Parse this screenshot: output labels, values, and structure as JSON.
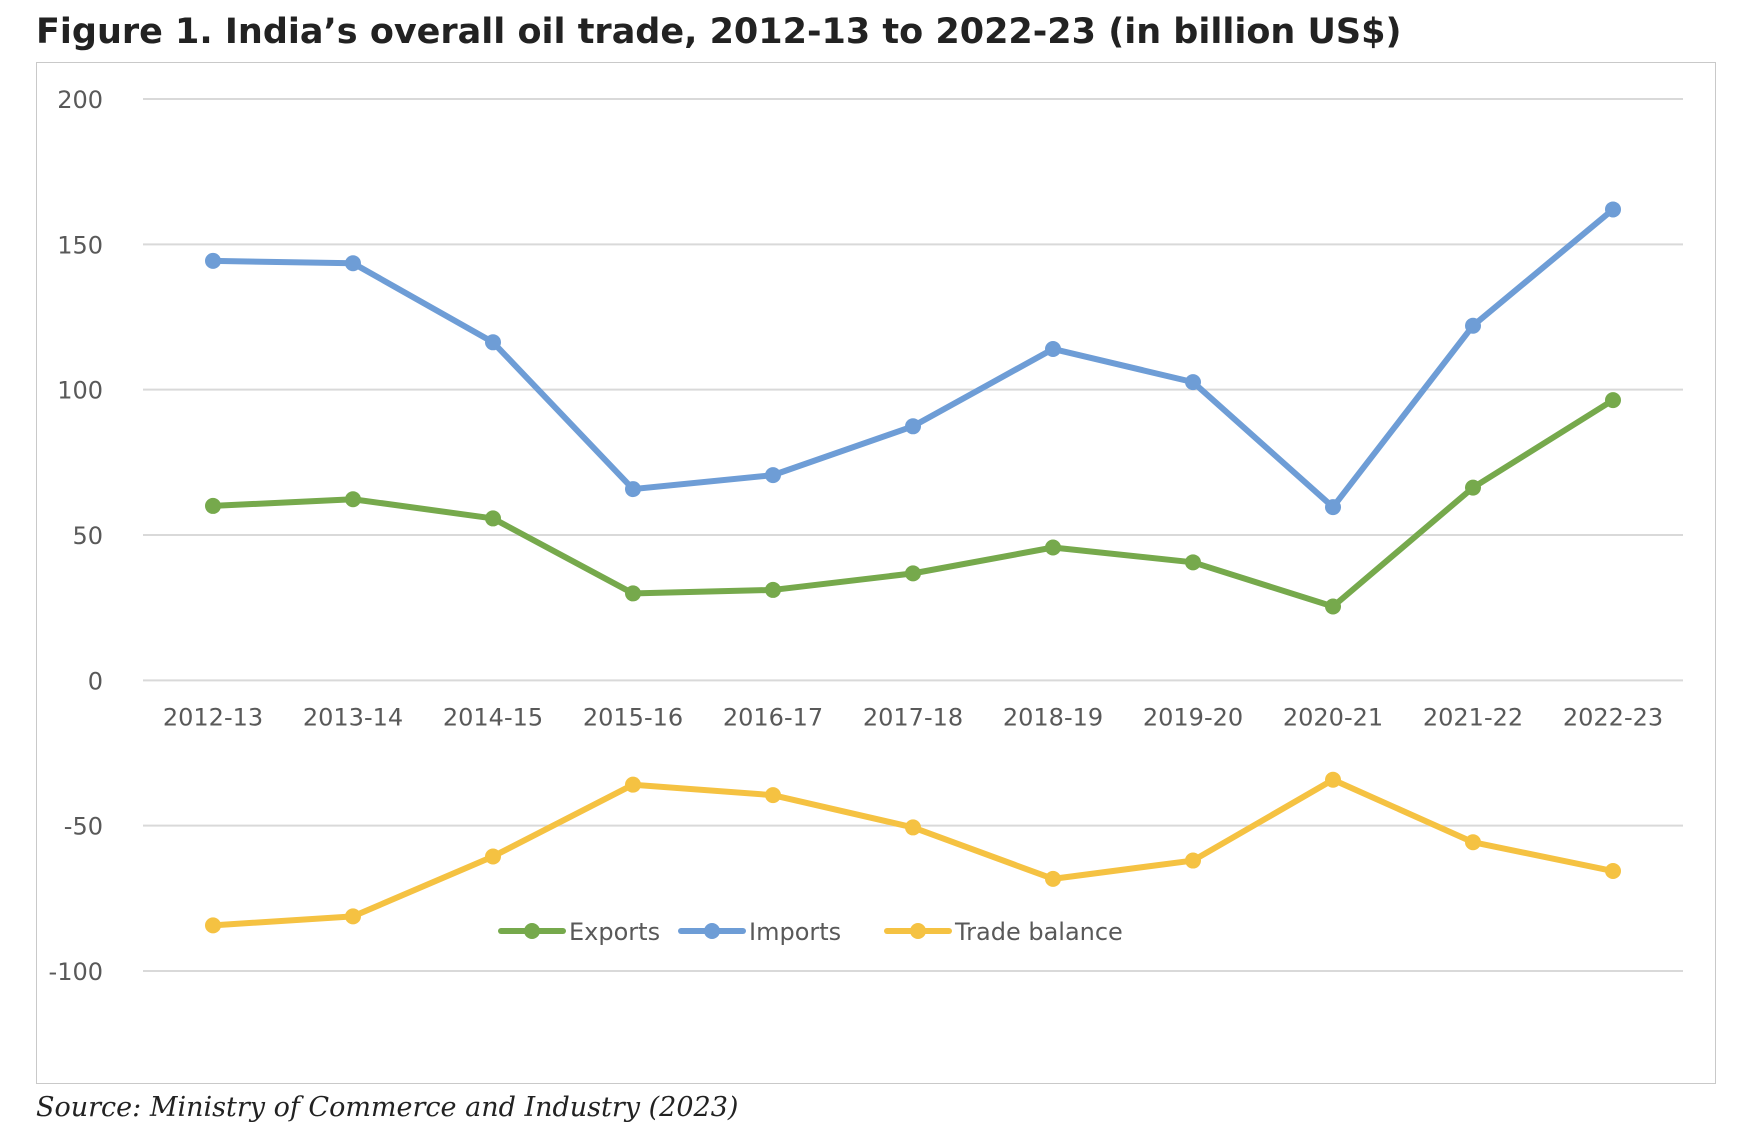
{
  "figure": {
    "title": "Figure 1. India’s overall oil trade, 2012-13 to 2022-23 (in billion US$)",
    "source": "Source: Ministry of Commerce and Industry (2023)"
  },
  "chart_data": {
    "type": "line",
    "title": "",
    "xlabel": "",
    "ylabel": "",
    "categories": [
      "2012-13",
      "2013-14",
      "2014-15",
      "2015-16",
      "2016-17",
      "2017-18",
      "2018-19",
      "2019-20",
      "2020-21",
      "2021-22",
      "2022-23"
    ],
    "ylim": [
      -100,
      200
    ],
    "yticks": [
      200,
      150,
      100,
      50,
      0,
      -50,
      -100
    ],
    "grid": "horizontal",
    "legend": "bottom",
    "series": [
      {
        "name": "Exports",
        "color": "#76A94C",
        "values": [
          60,
          62.3,
          55.7,
          29.9,
          31.1,
          36.8,
          45.7,
          40.6,
          25.4,
          66.3,
          96.4
        ]
      },
      {
        "name": "Imports",
        "color": "#6E9DD6",
        "values": [
          144.3,
          143.5,
          116.3,
          65.8,
          70.6,
          87.4,
          114,
          102.6,
          59.6,
          122,
          162
        ]
      },
      {
        "name": "Trade balance",
        "color": "#F5C242",
        "values": [
          -84.3,
          -81.2,
          -60.6,
          -35.9,
          -39.5,
          -50.6,
          -68.3,
          -62,
          -34.2,
          -55.7,
          -65.6
        ]
      }
    ]
  }
}
